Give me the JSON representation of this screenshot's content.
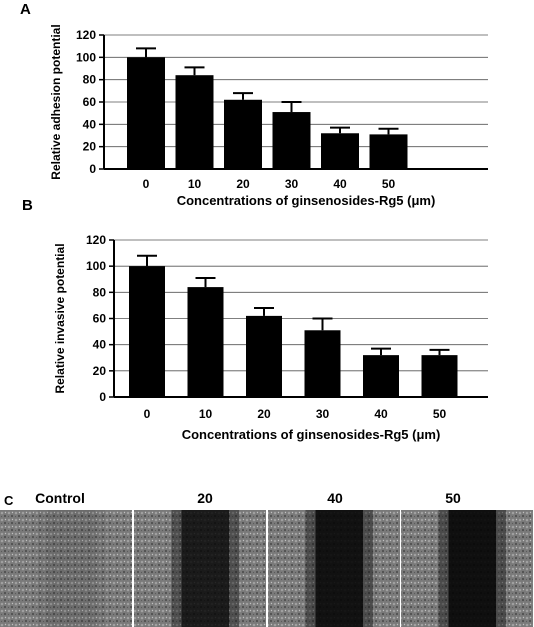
{
  "figure": {
    "panel_labels": [
      "A",
      "B",
      "C"
    ]
  },
  "chart_data": [
    {
      "type": "bar",
      "panel": "A",
      "categories": [
        "0",
        "10",
        "20",
        "30",
        "40",
        "50"
      ],
      "values": [
        100,
        84,
        62,
        51,
        32,
        31
      ],
      "errors": [
        8,
        7,
        6,
        9,
        5,
        5
      ],
      "xlabel": "Concentrations of ginsenosides-Rg5 (μm)",
      "ylabel": "Relative adhesion potential",
      "ylim": [
        0,
        120
      ],
      "yticks": [
        "0",
        "20",
        "40",
        "60",
        "80",
        "100",
        "120"
      ],
      "grid": true,
      "bar_color": "#000000"
    },
    {
      "type": "bar",
      "panel": "B",
      "categories": [
        "0",
        "10",
        "20",
        "30",
        "40",
        "50"
      ],
      "values": [
        100,
        84,
        62,
        51,
        32,
        32
      ],
      "errors": [
        8,
        7,
        6,
        9,
        5,
        4
      ],
      "xlabel": "Concentrations of ginsenosides-Rg5 (μm)",
      "ylabel": "Relative invasive potential",
      "ylim": [
        0,
        120
      ],
      "yticks": [
        "0",
        "20",
        "40",
        "60",
        "80",
        "100",
        "120"
      ],
      "grid": true,
      "bar_color": "#000000"
    }
  ],
  "micrographs": {
    "labels": [
      "Control",
      "20",
      "40",
      "50"
    ],
    "gap_darkness": [
      0.12,
      0.82,
      0.9,
      0.92
    ]
  }
}
